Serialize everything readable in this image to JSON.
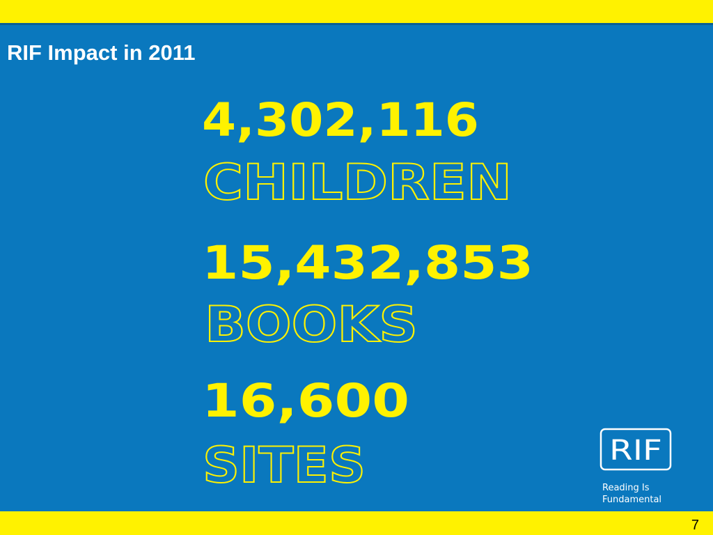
{
  "header": {
    "title": "RIF Impact in 2011"
  },
  "stats": [
    {
      "number": "4,302,116",
      "label": "CHILDREN"
    },
    {
      "number": "15,432,853",
      "label": "BOOKS"
    },
    {
      "number": "16,600",
      "label": "SITES"
    }
  ],
  "logo": {
    "mark": "RIF",
    "tagline": [
      "Reading Is",
      "Fundamental"
    ]
  },
  "footer": {
    "page_number": "7"
  }
}
